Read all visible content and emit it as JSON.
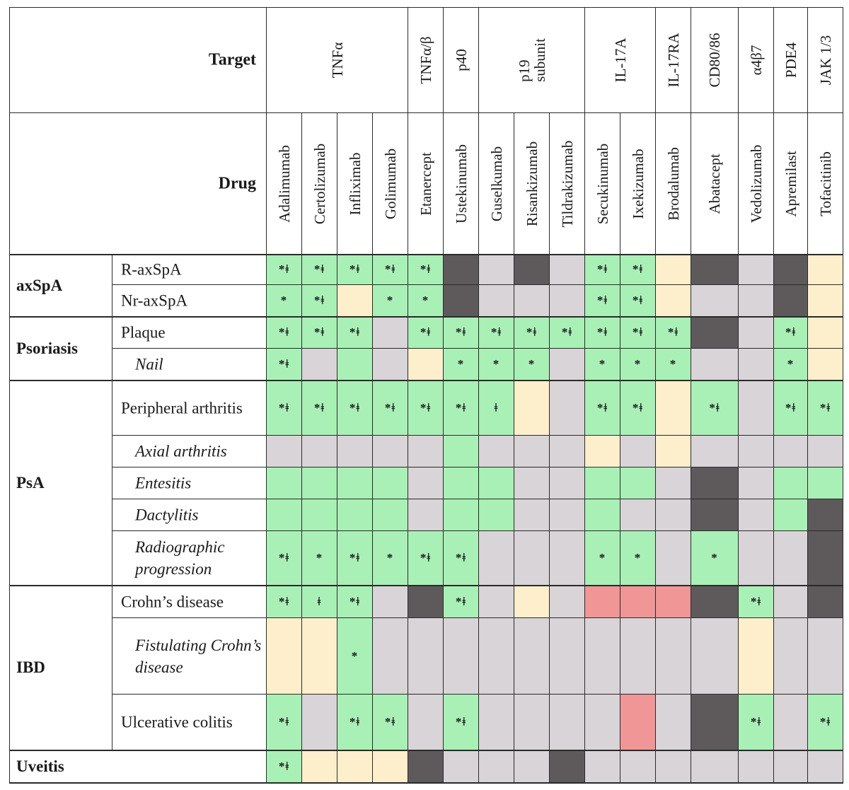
{
  "header": {
    "target_label": "Target",
    "drug_label": "Drug"
  },
  "targets": [
    {
      "label": "TNFα",
      "span": 4
    },
    {
      "label": "TNFα/β",
      "span": 1
    },
    {
      "label": "p40",
      "span": 1
    },
    {
      "label": "p19\nsubunit",
      "span": 3
    },
    {
      "label": "IL-17A",
      "span": 2
    },
    {
      "label": "IL-17RA",
      "span": 1
    },
    {
      "label": "CD80/86",
      "span": 1
    },
    {
      "label": "α4β7",
      "span": 1
    },
    {
      "label": "PDE4",
      "span": 1
    },
    {
      "label": "JAK 1/3",
      "span": 1
    }
  ],
  "drugs": [
    "Adalimumab",
    "Certolizumab",
    "Infliximab",
    "Golimumab",
    "Etanercept",
    "Ustekinumab",
    "Guselkumab",
    "Risankizumab",
    "Tildrakizumab",
    "Secukinumab",
    "Ixekizumab",
    "Brodalumab",
    "Abatacept",
    "Vedolizumab",
    "Apremilast",
    "Tofacitinib"
  ],
  "groups": [
    {
      "label": "axSpA",
      "row_count": 2
    },
    {
      "label": "Psoriasis",
      "row_count": 2
    },
    {
      "label": "PsA",
      "row_count": 5
    },
    {
      "label": "IBD",
      "row_count": 3
    },
    {
      "label": "Uveitis",
      "row_count": 1
    }
  ],
  "rows": [
    {
      "label": "R-axSpA",
      "italic": false,
      "cells": [
        [
          "g",
          "*ǂ"
        ],
        [
          "g",
          "*ǂ"
        ],
        [
          "g",
          "*ǂ"
        ],
        [
          "g",
          "*ǂ"
        ],
        [
          "g",
          "*ǂ"
        ],
        [
          "d",
          ""
        ],
        [
          "l",
          ""
        ],
        [
          "d",
          ""
        ],
        [
          "l",
          ""
        ],
        [
          "g",
          "*ǂ"
        ],
        [
          "g",
          "*ǂ"
        ],
        [
          "y",
          ""
        ],
        [
          "d",
          ""
        ],
        [
          "l",
          ""
        ],
        [
          "d",
          ""
        ],
        [
          "y",
          ""
        ]
      ]
    },
    {
      "label": "Nr-axSpA",
      "italic": false,
      "cells": [
        [
          "g",
          "*"
        ],
        [
          "g",
          "*ǂ"
        ],
        [
          "y",
          ""
        ],
        [
          "g",
          "*"
        ],
        [
          "g",
          "*"
        ],
        [
          "d",
          ""
        ],
        [
          "l",
          ""
        ],
        [
          "l",
          ""
        ],
        [
          "l",
          ""
        ],
        [
          "g",
          "*ǂ"
        ],
        [
          "g",
          "*ǂ"
        ],
        [
          "y",
          ""
        ],
        [
          "l",
          ""
        ],
        [
          "l",
          ""
        ],
        [
          "d",
          ""
        ],
        [
          "y",
          ""
        ]
      ]
    },
    {
      "label": "Plaque",
      "italic": false,
      "cells": [
        [
          "g",
          "*ǂ"
        ],
        [
          "g",
          "*ǂ"
        ],
        [
          "g",
          "*ǂ"
        ],
        [
          "l",
          ""
        ],
        [
          "g",
          "*ǂ"
        ],
        [
          "g",
          "*ǂ"
        ],
        [
          "g",
          "*ǂ"
        ],
        [
          "g",
          "*ǂ"
        ],
        [
          "g",
          "*ǂ"
        ],
        [
          "g",
          "*ǂ"
        ],
        [
          "g",
          "*ǂ"
        ],
        [
          "g",
          "*ǂ"
        ],
        [
          "d",
          ""
        ],
        [
          "l",
          ""
        ],
        [
          "g",
          "*ǂ"
        ],
        [
          "y",
          ""
        ]
      ]
    },
    {
      "label": "Nail",
      "italic": true,
      "cells": [
        [
          "g",
          "*ǂ"
        ],
        [
          "l",
          ""
        ],
        [
          "g",
          ""
        ],
        [
          "l",
          ""
        ],
        [
          "y",
          ""
        ],
        [
          "g",
          "*"
        ],
        [
          "g",
          "*"
        ],
        [
          "g",
          "*"
        ],
        [
          "l",
          ""
        ],
        [
          "g",
          "*"
        ],
        [
          "g",
          "*"
        ],
        [
          "g",
          "*"
        ],
        [
          "l",
          ""
        ],
        [
          "l",
          ""
        ],
        [
          "g",
          "*"
        ],
        [
          "y",
          ""
        ]
      ]
    },
    {
      "label": "Peripheral arthritis",
      "italic": false,
      "cells": [
        [
          "g",
          "*ǂ"
        ],
        [
          "g",
          "*ǂ"
        ],
        [
          "g",
          "*ǂ"
        ],
        [
          "g",
          "*ǂ"
        ],
        [
          "g",
          "*ǂ"
        ],
        [
          "g",
          "*ǂ"
        ],
        [
          "g",
          "ǂ"
        ],
        [
          "y",
          ""
        ],
        [
          "l",
          ""
        ],
        [
          "g",
          "*ǂ"
        ],
        [
          "g",
          "*ǂ"
        ],
        [
          "y",
          ""
        ],
        [
          "g",
          "*ǂ"
        ],
        [
          "l",
          ""
        ],
        [
          "g",
          "*ǂ"
        ],
        [
          "g",
          "*ǂ"
        ]
      ]
    },
    {
      "label": "Axial arthritis",
      "italic": true,
      "cells": [
        [
          "l",
          ""
        ],
        [
          "l",
          ""
        ],
        [
          "l",
          ""
        ],
        [
          "l",
          ""
        ],
        [
          "l",
          ""
        ],
        [
          "g",
          ""
        ],
        [
          "l",
          ""
        ],
        [
          "l",
          ""
        ],
        [
          "l",
          ""
        ],
        [
          "y",
          ""
        ],
        [
          "l",
          ""
        ],
        [
          "y",
          ""
        ],
        [
          "l",
          ""
        ],
        [
          "l",
          ""
        ],
        [
          "l",
          ""
        ],
        [
          "l",
          ""
        ]
      ]
    },
    {
      "label": "Entesitis",
      "italic": true,
      "cells": [
        [
          "g",
          ""
        ],
        [
          "g",
          ""
        ],
        [
          "g",
          ""
        ],
        [
          "g",
          ""
        ],
        [
          "l",
          ""
        ],
        [
          "g",
          ""
        ],
        [
          "g",
          ""
        ],
        [
          "l",
          ""
        ],
        [
          "l",
          ""
        ],
        [
          "g",
          ""
        ],
        [
          "g",
          ""
        ],
        [
          "l",
          ""
        ],
        [
          "d",
          ""
        ],
        [
          "l",
          ""
        ],
        [
          "g",
          ""
        ],
        [
          "g",
          ""
        ]
      ]
    },
    {
      "label": "Dactylitis",
      "italic": true,
      "cells": [
        [
          "g",
          ""
        ],
        [
          "g",
          ""
        ],
        [
          "g",
          ""
        ],
        [
          "g",
          ""
        ],
        [
          "l",
          ""
        ],
        [
          "g",
          ""
        ],
        [
          "g",
          ""
        ],
        [
          "l",
          ""
        ],
        [
          "l",
          ""
        ],
        [
          "g",
          ""
        ],
        [
          "l",
          ""
        ],
        [
          "l",
          ""
        ],
        [
          "d",
          ""
        ],
        [
          "l",
          ""
        ],
        [
          "g",
          ""
        ],
        [
          "d",
          ""
        ]
      ]
    },
    {
      "label": "Radiographic progression",
      "italic": true,
      "cells": [
        [
          "g",
          "*ǂ"
        ],
        [
          "g",
          "*"
        ],
        [
          "g",
          "*ǂ"
        ],
        [
          "g",
          "*"
        ],
        [
          "g",
          "*ǂ"
        ],
        [
          "g",
          "*ǂ"
        ],
        [
          "l",
          ""
        ],
        [
          "l",
          ""
        ],
        [
          "l",
          ""
        ],
        [
          "g",
          "*"
        ],
        [
          "g",
          "*"
        ],
        [
          "l",
          ""
        ],
        [
          "g",
          "*"
        ],
        [
          "l",
          ""
        ],
        [
          "l",
          ""
        ],
        [
          "d",
          ""
        ]
      ]
    },
    {
      "label": "Crohn’s disease",
      "italic": false,
      "cells": [
        [
          "g",
          "*ǂ"
        ],
        [
          "g",
          "ǂ"
        ],
        [
          "g",
          "*ǂ"
        ],
        [
          "l",
          ""
        ],
        [
          "d",
          ""
        ],
        [
          "g",
          "*ǂ"
        ],
        [
          "l",
          ""
        ],
        [
          "y",
          ""
        ],
        [
          "l",
          ""
        ],
        [
          "r",
          ""
        ],
        [
          "r",
          ""
        ],
        [
          "r",
          ""
        ],
        [
          "d",
          ""
        ],
        [
          "g",
          "*ǂ"
        ],
        [
          "l",
          ""
        ],
        [
          "d",
          ""
        ]
      ]
    },
    {
      "label": "Fistulating Crohn’s disease",
      "italic": true,
      "cells": [
        [
          "y",
          ""
        ],
        [
          "y",
          ""
        ],
        [
          "g",
          "*"
        ],
        [
          "l",
          ""
        ],
        [
          "l",
          ""
        ],
        [
          "l",
          ""
        ],
        [
          "l",
          ""
        ],
        [
          "l",
          ""
        ],
        [
          "l",
          ""
        ],
        [
          "l",
          ""
        ],
        [
          "l",
          ""
        ],
        [
          "l",
          ""
        ],
        [
          "l",
          ""
        ],
        [
          "y",
          ""
        ],
        [
          "l",
          ""
        ],
        [
          "l",
          ""
        ]
      ]
    },
    {
      "label": "Ulcerative colitis",
      "italic": false,
      "cells": [
        [
          "g",
          "*ǂ"
        ],
        [
          "l",
          ""
        ],
        [
          "g",
          "*ǂ"
        ],
        [
          "g",
          "*ǂ"
        ],
        [
          "l",
          ""
        ],
        [
          "g",
          "*ǂ"
        ],
        [
          "l",
          ""
        ],
        [
          "l",
          ""
        ],
        [
          "l",
          ""
        ],
        [
          "l",
          ""
        ],
        [
          "r",
          ""
        ],
        [
          "l",
          ""
        ],
        [
          "d",
          ""
        ],
        [
          "g",
          "*ǂ"
        ],
        [
          "l",
          ""
        ],
        [
          "g",
          "*ǂ"
        ]
      ]
    },
    {
      "label": "",
      "italic": false,
      "cells": [
        [
          "g",
          "*ǂ"
        ],
        [
          "y",
          ""
        ],
        [
          "y",
          ""
        ],
        [
          "y",
          ""
        ],
        [
          "d",
          ""
        ],
        [
          "l",
          ""
        ],
        [
          "l",
          ""
        ],
        [
          "l",
          ""
        ],
        [
          "d",
          ""
        ],
        [
          "l",
          ""
        ],
        [
          "l",
          ""
        ],
        [
          "l",
          ""
        ],
        [
          "l",
          ""
        ],
        [
          "l",
          ""
        ],
        [
          "l",
          ""
        ],
        [
          "l",
          ""
        ]
      ]
    }
  ]
}
